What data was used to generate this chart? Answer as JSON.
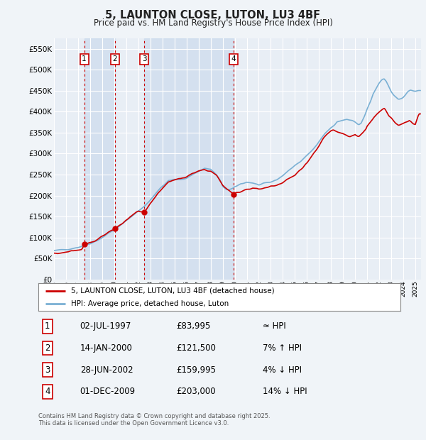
{
  "title": "5, LAUNTON CLOSE, LUTON, LU3 4BF",
  "subtitle": "Price paid vs. HM Land Registry's House Price Index (HPI)",
  "background_color": "#f0f4f8",
  "plot_bg_color": "#e8eef5",
  "ylim": [
    0,
    575000
  ],
  "yticks": [
    0,
    50000,
    100000,
    150000,
    200000,
    250000,
    300000,
    350000,
    400000,
    450000,
    500000,
    550000
  ],
  "sale_dates_num": [
    1997.5,
    2000.04,
    2002.49,
    2009.92
  ],
  "sale_labels": [
    "1",
    "2",
    "3",
    "4"
  ],
  "sale_prices": [
    83995,
    121500,
    159995,
    203000
  ],
  "vline_color": "#cc0000",
  "sale_box_color": "#cc0000",
  "legend_line1": "5, LAUNTON CLOSE, LUTON, LU3 4BF (detached house)",
  "legend_line2": "HPI: Average price, detached house, Luton",
  "legend_line1_color": "#cc0000",
  "legend_line2_color": "#7ab0d4",
  "shade_color": "#c8d8ec",
  "table_rows": [
    [
      "1",
      "02-JUL-1997",
      "£83,995",
      "≈ HPI"
    ],
    [
      "2",
      "14-JAN-2000",
      "£121,500",
      "7% ↑ HPI"
    ],
    [
      "3",
      "28-JUN-2002",
      "£159,995",
      "4% ↓ HPI"
    ],
    [
      "4",
      "01-DEC-2009",
      "£203,000",
      "14% ↓ HPI"
    ]
  ],
  "footnote": "Contains HM Land Registry data © Crown copyright and database right 2025.\nThis data is licensed under the Open Government Licence v3.0.",
  "xmin": 1995.0,
  "xmax": 2025.5
}
